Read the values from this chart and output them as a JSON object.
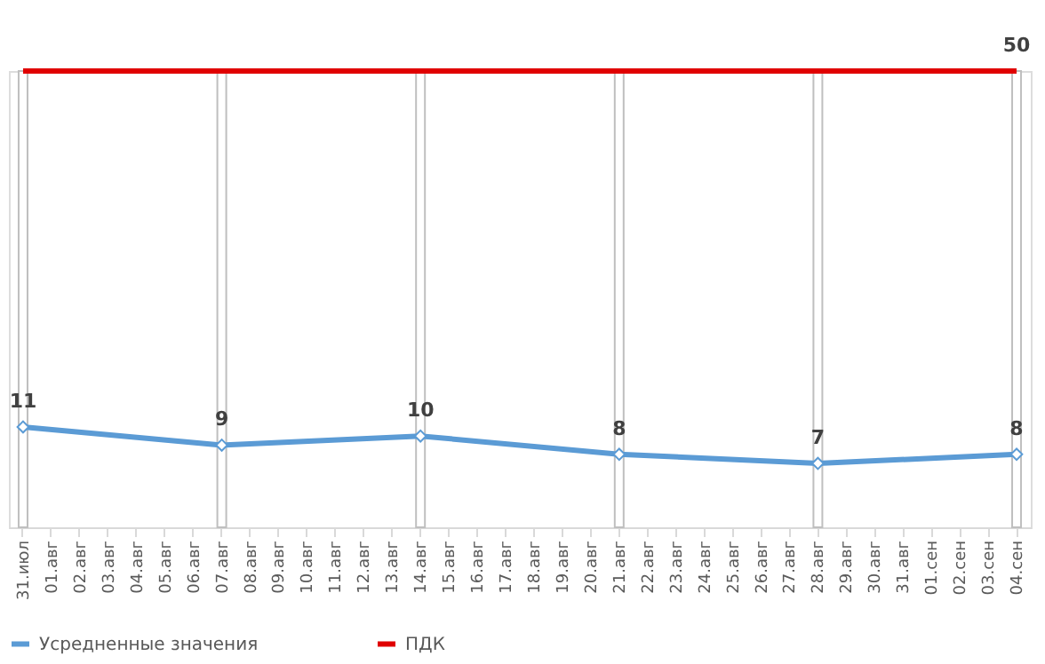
{
  "chart_data": {
    "type": "line",
    "categories": [
      "31.июл",
      "01.авг",
      "02.авг",
      "03.авг",
      "04.авг",
      "05.авг",
      "06.авг",
      "07.авг",
      "08.авг",
      "09.авг",
      "10.авг",
      "11.авг",
      "12.авг",
      "13.авг",
      "14.авг",
      "15.авг",
      "16.авг",
      "17.авг",
      "18.авг",
      "19.авг",
      "20.авг",
      "21.авг",
      "22.авг",
      "23.авг",
      "24.авг",
      "25.авг",
      "26.авг",
      "27.авг",
      "28.авг",
      "29.авг",
      "30.авг",
      "31.авг",
      "01.сен",
      "02.сен",
      "03.сен",
      "04.сен"
    ],
    "ylim": [
      0,
      50
    ],
    "tick_labels": "x",
    "grid": false,
    "legend": "bottom",
    "series": [
      {
        "type": "bar",
        "color": "#ffffff",
        "values": [
          50,
          null,
          null,
          null,
          null,
          null,
          null,
          50,
          null,
          null,
          null,
          null,
          null,
          null,
          50,
          null,
          null,
          null,
          null,
          null,
          null,
          50,
          null,
          null,
          null,
          null,
          null,
          null,
          50,
          null,
          null,
          null,
          null,
          null,
          null,
          50
        ]
      },
      {
        "name": "Усредненные значения",
        "color": "#5b9bd5",
        "marker": "diamond",
        "values": [
          11,
          null,
          null,
          null,
          null,
          null,
          null,
          9,
          null,
          null,
          null,
          null,
          null,
          null,
          10,
          null,
          null,
          null,
          null,
          null,
          null,
          8,
          null,
          null,
          null,
          null,
          null,
          null,
          7,
          null,
          null,
          null,
          null,
          null,
          null,
          8
        ],
        "value_labels": [
          "11",
          null,
          null,
          null,
          null,
          null,
          null,
          "9",
          null,
          null,
          null,
          null,
          null,
          null,
          "10",
          null,
          null,
          null,
          null,
          null,
          null,
          "8",
          null,
          null,
          null,
          null,
          null,
          null,
          "7",
          null,
          null,
          null,
          null,
          null,
          null,
          "8"
        ]
      },
      {
        "name": "ПДК",
        "color": "#e00000",
        "marker": "none",
        "values": [
          50,
          null,
          null,
          null,
          null,
          null,
          null,
          50,
          null,
          null,
          null,
          null,
          null,
          null,
          50,
          null,
          null,
          null,
          null,
          null,
          null,
          50,
          null,
          null,
          null,
          null,
          null,
          null,
          50,
          null,
          null,
          null,
          null,
          null,
          null,
          50
        ],
        "value_labels": [
          null,
          null,
          null,
          null,
          null,
          null,
          null,
          null,
          null,
          null,
          null,
          null,
          null,
          null,
          null,
          null,
          null,
          null,
          null,
          null,
          null,
          null,
          null,
          null,
          null,
          null,
          null,
          null,
          null,
          null,
          null,
          null,
          null,
          null,
          null,
          "50"
        ]
      }
    ]
  }
}
